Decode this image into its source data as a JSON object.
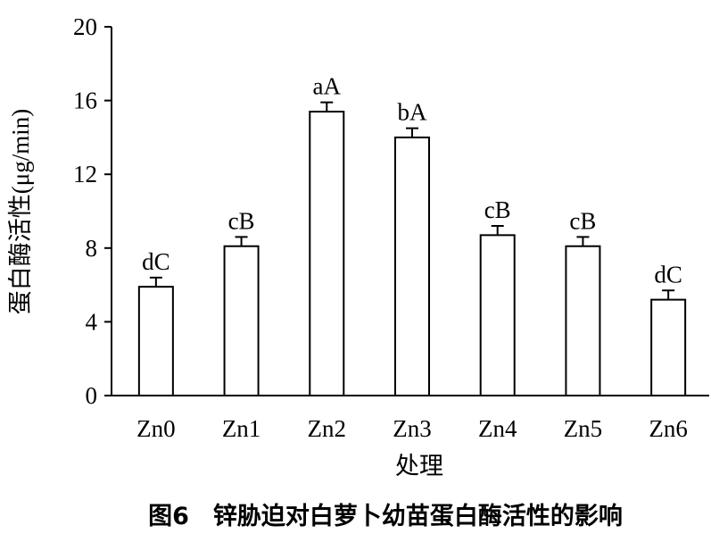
{
  "chart_data": {
    "type": "bar",
    "categories": [
      "Zn0",
      "Zn1",
      "Zn2",
      "Zn3",
      "Zn4",
      "Zn5",
      "Zn6"
    ],
    "values": [
      5.9,
      8.1,
      15.4,
      14.0,
      8.7,
      8.1,
      5.2
    ],
    "errors": [
      0.5,
      0.5,
      0.5,
      0.5,
      0.5,
      0.5,
      0.5
    ],
    "annotations": [
      "dC",
      "cB",
      "aA",
      "bA",
      "cB",
      "cB",
      "dC"
    ],
    "color": "#ffffff",
    "ylim": [
      0,
      20
    ],
    "yticks": [
      0,
      4,
      8,
      12,
      16,
      20
    ],
    "x_label": "处理",
    "y_label": "蛋白酶活性(μg/min)",
    "caption": "图6　锌胁迫对白萝卜幼苗蛋白酶活性的影响"
  }
}
